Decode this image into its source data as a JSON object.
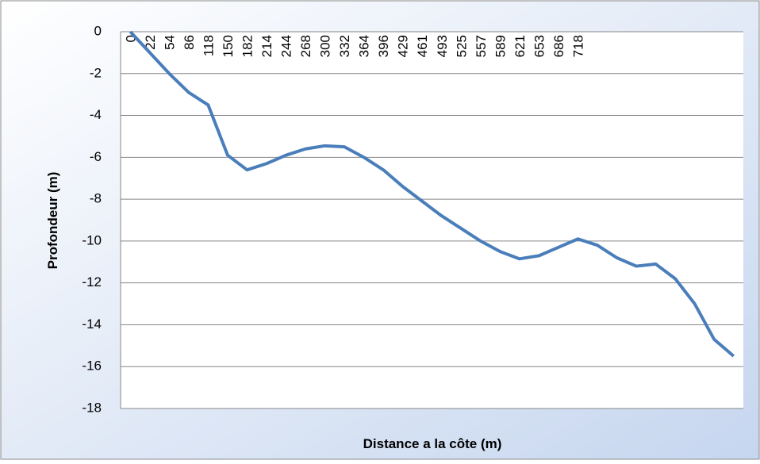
{
  "chart_data": {
    "type": "line",
    "x_label": "Distance a la côte (m)",
    "y_label": "Profondeur (m)",
    "categories": [
      "0",
      "22",
      "54",
      "86",
      "118",
      "150",
      "182",
      "214",
      "244",
      "268",
      "300",
      "332",
      "364",
      "396",
      "429",
      "461",
      "493",
      "525",
      "557",
      "589",
      "621",
      "653",
      "686",
      "718",
      null,
      null,
      null,
      null,
      null,
      null,
      null,
      null
    ],
    "series": [
      {
        "name": "Profondeur",
        "color": "#4a7ebb",
        "values": [
          0,
          -1.0,
          -2.0,
          -2.9,
          -3.5,
          -5.9,
          -6.6,
          -6.3,
          -5.9,
          -5.6,
          -5.45,
          -5.5,
          -6.0,
          -6.6,
          -7.4,
          -8.1,
          -8.8,
          -9.4,
          -10.0,
          -10.5,
          -10.85,
          -10.7,
          -10.3,
          -9.9,
          -10.2,
          -10.8,
          -11.2,
          -11.1,
          -11.8,
          -13.0,
          -14.7,
          -15.5
        ]
      }
    ],
    "ylim": [
      -18,
      0
    ],
    "yticks": [
      0,
      -2,
      -4,
      -6,
      -8,
      -10,
      -12,
      -14,
      -16,
      -18
    ],
    "grid": true
  }
}
